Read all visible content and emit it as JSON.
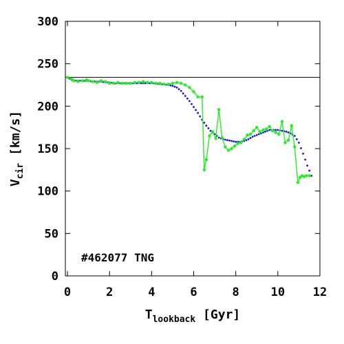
{
  "chart_data": {
    "type": "line",
    "xlabel": {
      "main": "T",
      "sub": "lookback",
      "tail": " [Gyr]"
    },
    "ylabel": {
      "main": "V",
      "sub": "cir",
      "tail": " [km/s]"
    },
    "xlim": [
      -0.1,
      12
    ],
    "ylim": [
      0,
      300
    ],
    "xticks": [
      0,
      2,
      4,
      6,
      8,
      10,
      12
    ],
    "yticks": [
      0,
      50,
      100,
      150,
      200,
      250,
      300
    ],
    "annotation": "#462077 TNG",
    "reference_line": {
      "y": 234,
      "color": "#000000"
    },
    "series": [
      {
        "style": "dotted",
        "color": "#1010e0",
        "x": [
          0.0,
          0.2,
          0.4,
          0.6,
          0.8,
          1.0,
          1.2,
          1.4,
          1.6,
          1.8,
          2.0,
          2.2,
          2.4,
          2.6,
          2.8,
          3.0,
          3.2,
          3.4,
          3.6,
          3.8,
          4.0,
          4.2,
          4.4,
          4.6,
          4.8,
          5.0,
          5.2,
          5.4,
          5.6,
          5.8,
          6.0,
          6.2,
          6.4,
          6.6,
          6.8,
          7.0,
          7.2,
          7.4,
          7.6,
          7.8,
          8.0,
          8.2,
          8.4,
          8.6,
          8.8,
          9.0,
          9.2,
          9.4,
          9.6,
          9.8,
          10.0,
          10.2,
          10.4,
          10.6,
          10.8,
          11.0,
          11.2,
          11.4,
          11.6
        ],
        "y": [
          234,
          231,
          230,
          230,
          230,
          230,
          229,
          229,
          229,
          228,
          228,
          227,
          227,
          227,
          227,
          227,
          227,
          227,
          227,
          227,
          227,
          227,
          226,
          226,
          225,
          224,
          222,
          218,
          212,
          206,
          199,
          192,
          184,
          177,
          171,
          167,
          163,
          161,
          160,
          159,
          158,
          158,
          159,
          161,
          164,
          166,
          168,
          170,
          172,
          172,
          172,
          171,
          170,
          168,
          165,
          157,
          144,
          130,
          118
        ]
      },
      {
        "style": "solid-markers",
        "color": "#22ee22",
        "x": [
          0.0,
          0.2,
          0.3,
          0.5,
          0.7,
          0.9,
          1.0,
          1.2,
          1.4,
          1.6,
          1.8,
          2.0,
          2.2,
          2.4,
          2.6,
          2.8,
          3.0,
          3.2,
          3.4,
          3.6,
          3.8,
          4.0,
          4.2,
          4.4,
          4.6,
          4.8,
          5.0,
          5.2,
          5.4,
          5.6,
          5.8,
          6.0,
          6.2,
          6.4,
          6.5,
          6.6,
          6.75,
          6.9,
          7.05,
          7.2,
          7.35,
          7.5,
          7.65,
          7.8,
          7.95,
          8.1,
          8.25,
          8.4,
          8.55,
          8.7,
          8.85,
          9.0,
          9.15,
          9.3,
          9.45,
          9.6,
          9.75,
          9.9,
          10.05,
          10.2,
          10.35,
          10.5,
          10.65,
          10.8,
          10.95,
          11.05,
          11.15,
          11.25,
          11.35,
          11.5
        ],
        "y": [
          234,
          232,
          230,
          229,
          230,
          231,
          230,
          229,
          228,
          230,
          229,
          227,
          227,
          228,
          227,
          227,
          227,
          228,
          228,
          229,
          228,
          228,
          227,
          227,
          226,
          226,
          227,
          228,
          227,
          225,
          222,
          217,
          211,
          211,
          125,
          137,
          165,
          170,
          162,
          196,
          163,
          152,
          148,
          150,
          153,
          156,
          157,
          161,
          166,
          167,
          171,
          175,
          170,
          172,
          173,
          176,
          171,
          169,
          167,
          182,
          157,
          160,
          177,
          152,
          110,
          116,
          118,
          117,
          118,
          118
        ]
      }
    ]
  }
}
